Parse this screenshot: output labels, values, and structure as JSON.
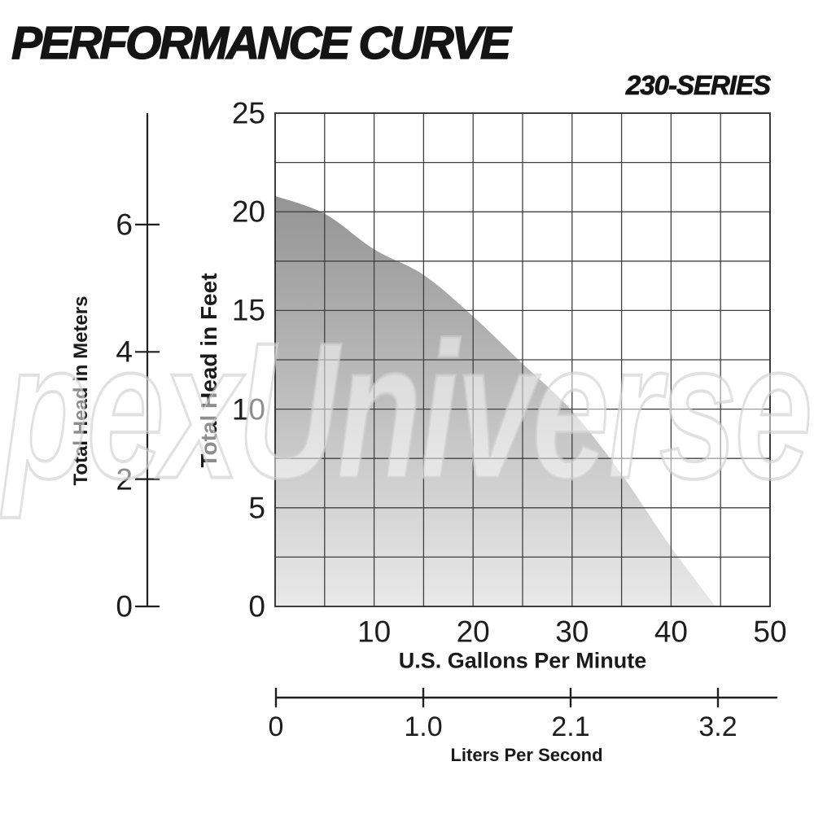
{
  "header": {
    "title": "PERFORMANCE CURVE",
    "series": "230-SERIES"
  },
  "watermark": "pexUniverse",
  "chart_data": {
    "type": "area",
    "title": "PERFORMANCE CURVE",
    "series_label": "230-SERIES",
    "x_axis": {
      "label": "U.S. Gallons Per Minute",
      "ticks": [
        10,
        20,
        30,
        40,
        50
      ],
      "range": [
        0,
        50
      ],
      "grid_step": 5
    },
    "y_axis_feet": {
      "label": "Total Head in Feet",
      "ticks": [
        25,
        20,
        15,
        10,
        5,
        0
      ],
      "range": [
        0,
        25
      ],
      "grid_step": 2.5
    },
    "y_axis_meters": {
      "label": "Total Head in Meters",
      "ticks": [
        6,
        4,
        2,
        0
      ]
    },
    "x_axis_secondary": {
      "label": "Liters Per Second",
      "ticks": [
        "0",
        "1.0",
        "2.1",
        "3.2"
      ]
    },
    "curve_points": [
      [
        0,
        20.8
      ],
      [
        5,
        19.9
      ],
      [
        10,
        18.1
      ],
      [
        15,
        16.8
      ],
      [
        20,
        14.7
      ],
      [
        25,
        12.3
      ],
      [
        30,
        9.9
      ],
      [
        35,
        6.7
      ],
      [
        40,
        3.0
      ],
      [
        44.5,
        0
      ]
    ],
    "grid": true,
    "legend": "none",
    "fill_gradient": {
      "top": "#949494",
      "bottom": "#e9e9e9"
    },
    "grid_color": "#404040",
    "axis_color": "#1f1f1f"
  }
}
